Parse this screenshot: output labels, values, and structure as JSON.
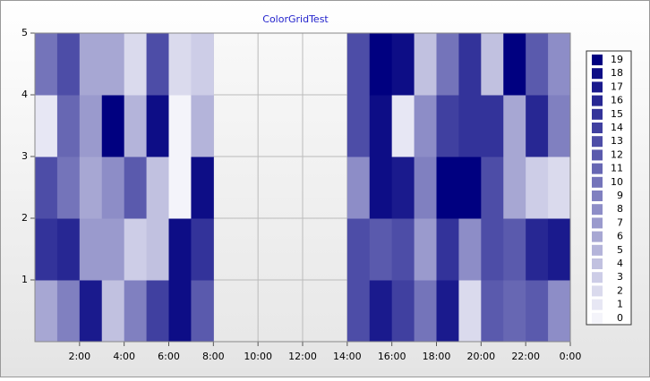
{
  "chart_data": {
    "type": "heatmap",
    "title": "ColorGridTest",
    "x": [
      0,
      1,
      2,
      3,
      4,
      5,
      6,
      7,
      8,
      9,
      10,
      11,
      12,
      13,
      14,
      15,
      16,
      17,
      18,
      19,
      20,
      21,
      22,
      23
    ],
    "y": [
      0,
      1,
      2,
      3,
      4
    ],
    "z": [
      [
        6,
        9,
        17,
        4,
        9,
        14,
        18,
        12,
        null,
        null,
        null,
        null,
        null,
        null,
        13,
        17,
        14,
        10,
        17,
        2,
        12,
        11,
        12,
        8
      ],
      [
        15,
        16,
        7,
        7,
        3,
        4,
        18,
        15,
        null,
        null,
        null,
        null,
        null,
        null,
        13,
        12,
        13,
        7,
        15,
        8,
        13,
        12,
        16,
        17
      ],
      [
        13,
        10,
        6,
        8,
        12,
        4,
        0,
        18,
        null,
        null,
        null,
        null,
        null,
        null,
        8,
        18,
        17,
        9,
        19,
        19,
        13,
        6,
        3,
        2
      ],
      [
        1,
        11,
        7,
        19,
        5,
        18,
        0,
        5,
        null,
        null,
        null,
        null,
        null,
        null,
        13,
        18,
        1,
        8,
        14,
        15,
        15,
        6,
        16,
        9
      ],
      [
        10,
        13,
        6,
        6,
        2,
        13,
        2,
        3,
        null,
        null,
        null,
        null,
        null,
        null,
        13,
        19,
        18,
        4,
        10,
        15,
        4,
        19,
        12,
        8
      ]
    ],
    "xlim": [
      0,
      24
    ],
    "xticks": [
      {
        "value": 2,
        "label": "2:00"
      },
      {
        "value": 4,
        "label": "4:00"
      },
      {
        "value": 6,
        "label": "6:00"
      },
      {
        "value": 8,
        "label": "8:00"
      },
      {
        "value": 10,
        "label": "10:00"
      },
      {
        "value": 12,
        "label": "12:00"
      },
      {
        "value": 14,
        "label": "14:00"
      },
      {
        "value": 16,
        "label": "16:00"
      },
      {
        "value": 18,
        "label": "18:00"
      },
      {
        "value": 20,
        "label": "20:00"
      },
      {
        "value": 22,
        "label": "22:00"
      },
      {
        "value": 24,
        "label": "0:00"
      }
    ],
    "ylim": [
      0,
      5
    ],
    "yticks": [
      1,
      2,
      3,
      4,
      5
    ],
    "colorscale": [
      "#f4f4fa",
      "#000080"
    ],
    "colorbar_ticks": [
      19,
      18,
      17,
      16,
      15,
      14,
      13,
      12,
      11,
      10,
      9,
      8,
      7,
      6,
      5,
      4,
      3,
      2,
      1,
      0
    ],
    "grid": true
  }
}
